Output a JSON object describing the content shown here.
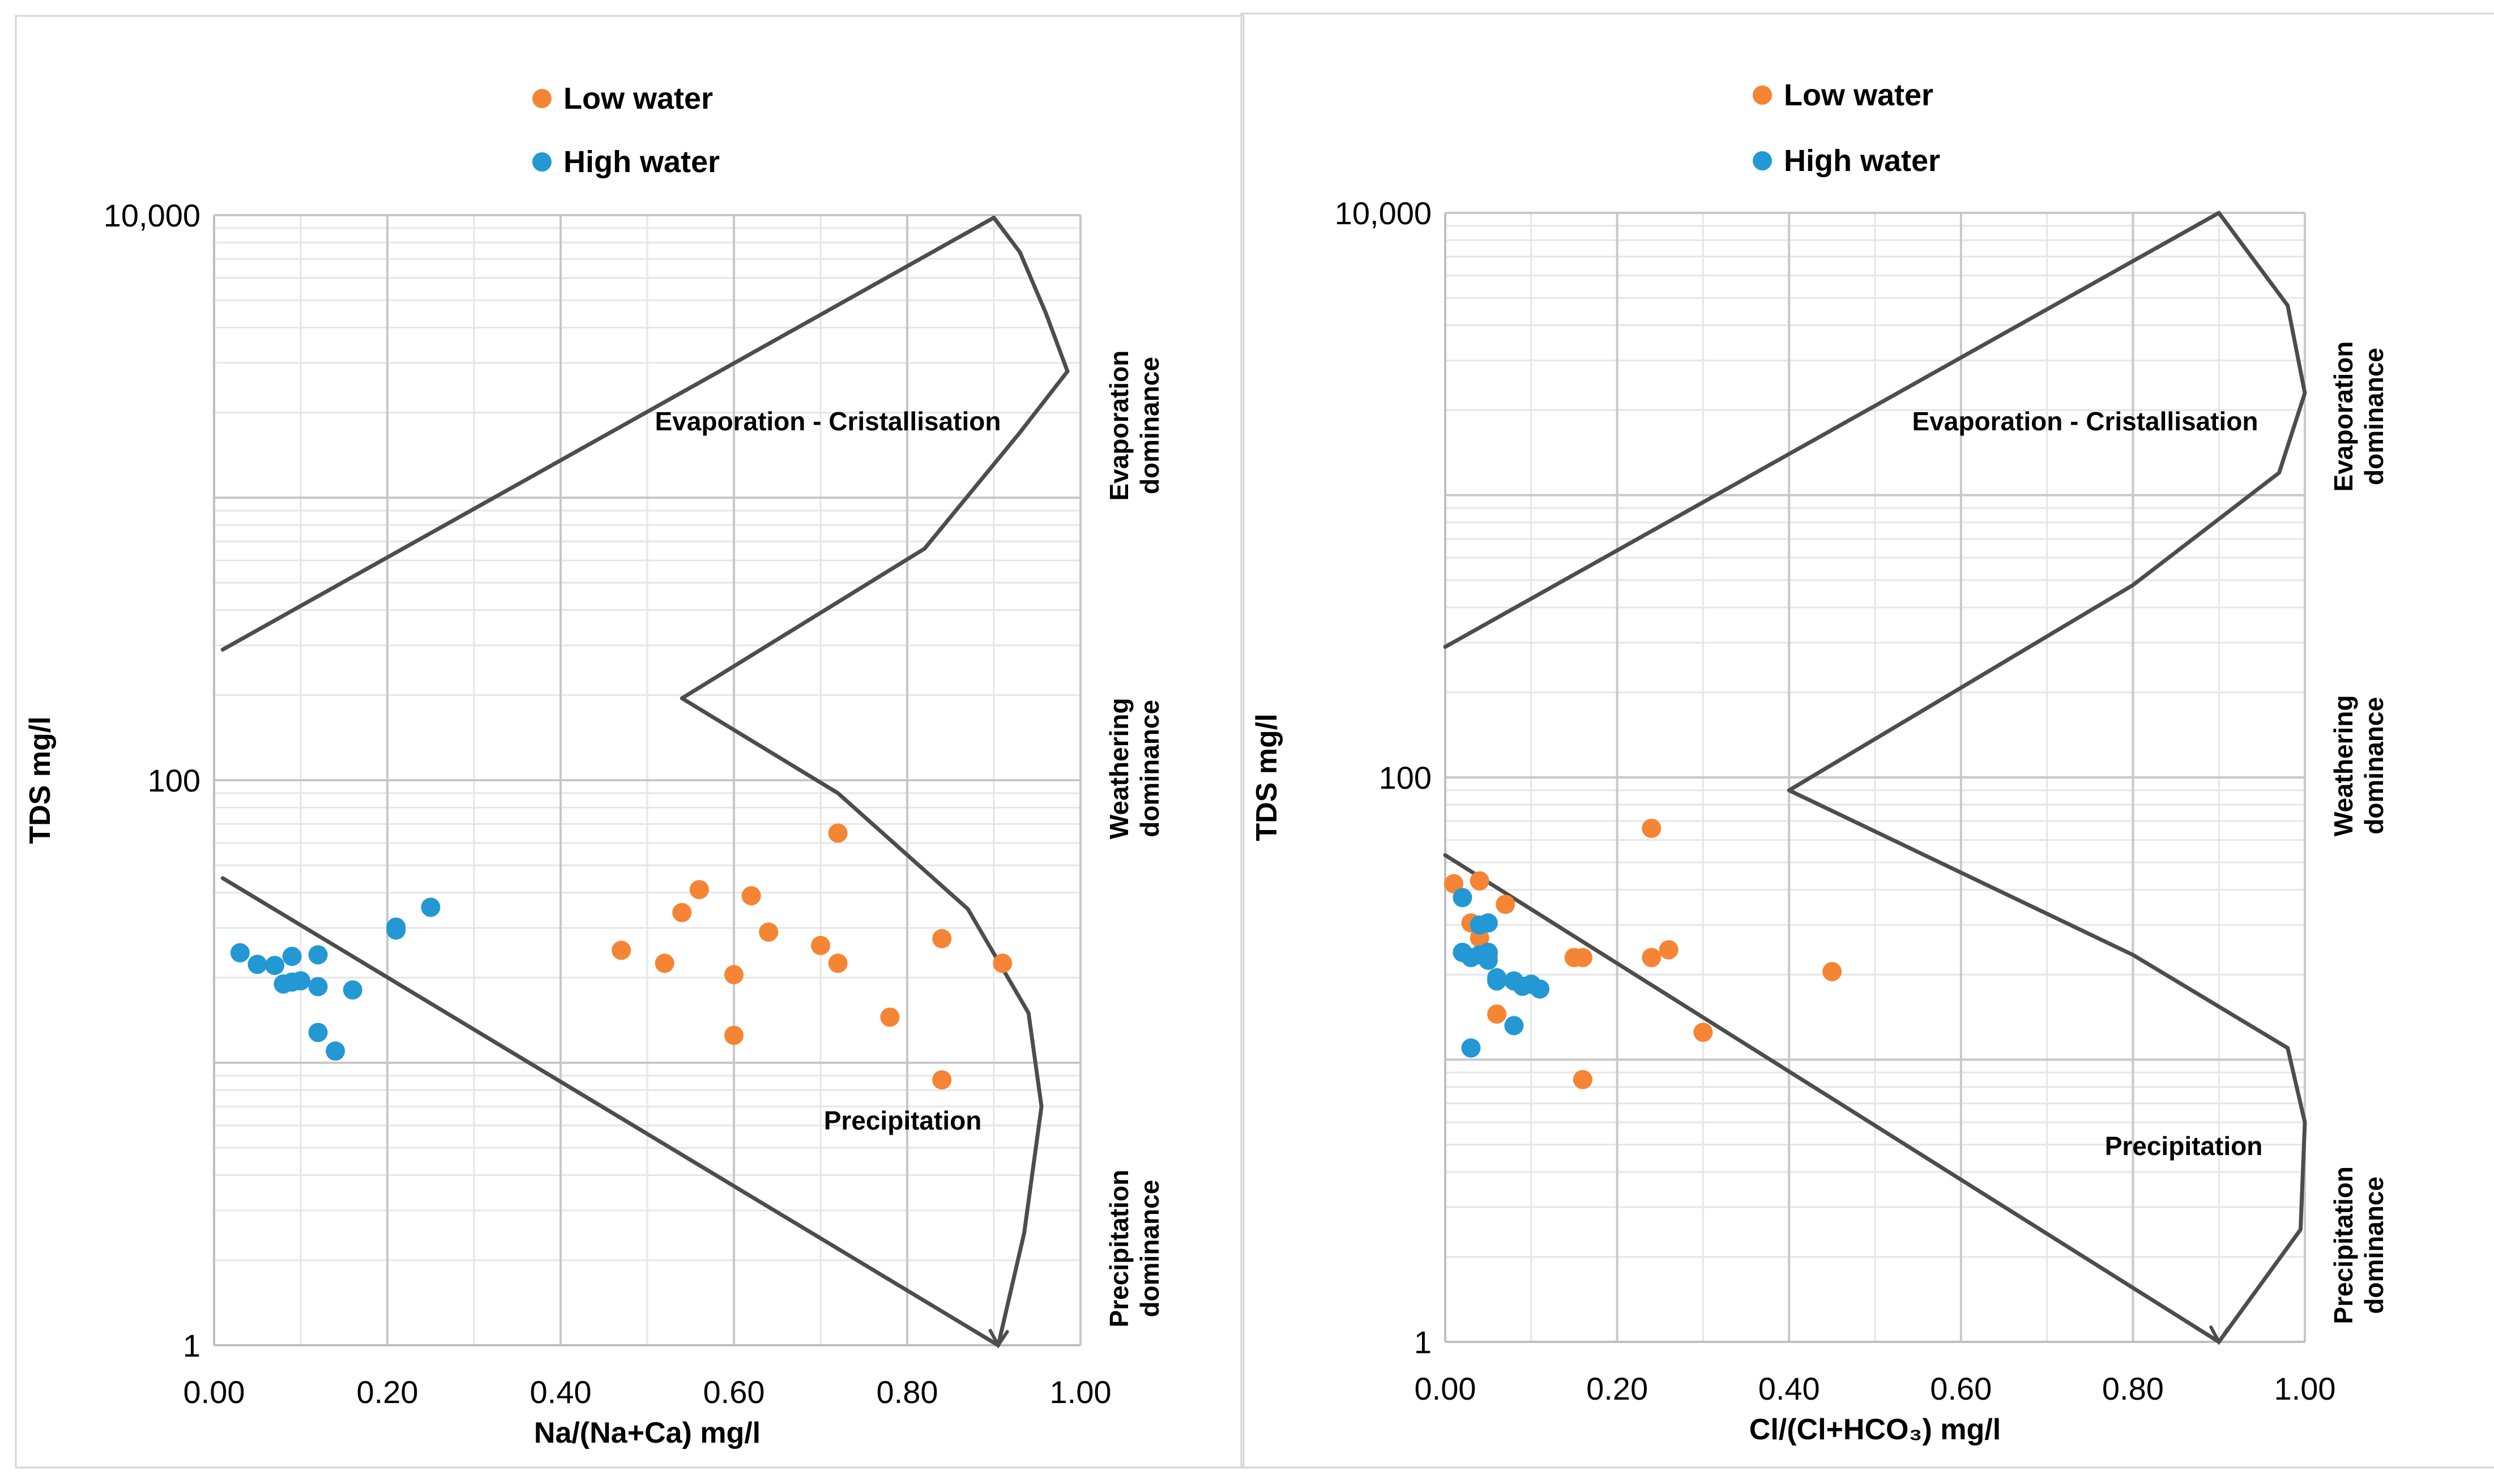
{
  "colors": {
    "low_water": "#F58534",
    "high_water": "#2398D4",
    "envelope": "#4D4D4D",
    "grid_major": "#C8C8C8",
    "grid_minor": "#E6E6E6",
    "panel_border": "#D4D4D4"
  },
  "chart_data": [
    {
      "type": "scatter",
      "title": "",
      "xlabel": "Na/(Na+Ca)  mg/l",
      "ylabel": "TDS mg/l",
      "xlim": [
        0,
        1
      ],
      "ylim": [
        1,
        10000
      ],
      "y_scale": "log",
      "grid": true,
      "legend_position": "top-center",
      "x_ticks": [
        0,
        0.2,
        0.4,
        0.6,
        0.8,
        1.0
      ],
      "x_tick_labels": [
        "0.00",
        "0.20",
        "0.40",
        "0.60",
        "0.80",
        "1.00"
      ],
      "y_ticks": [
        1,
        100,
        10000
      ],
      "y_tick_labels": [
        "1",
        "100",
        "10,000"
      ],
      "side_labels": [
        {
          "line1": "Evaporation",
          "line2": "dominance",
          "y": 1800
        },
        {
          "line1": "Weathering",
          "line2": "dominance",
          "y": 110
        },
        {
          "line1": "Precipitation",
          "line2": "dominance",
          "y": 2.2
        }
      ],
      "region_labels": [
        {
          "text": "Evaporation - Cristallisation",
          "x": 0.71,
          "y": 1900
        },
        {
          "text": "Precipitation",
          "x": 0.8,
          "y": 8.2
        }
      ],
      "envelope": [
        [
          [
            0.01,
            290
          ],
          [
            0.9,
            9800
          ]
        ],
        [
          [
            0.9,
            9800
          ],
          [
            0.93,
            7400
          ],
          [
            0.96,
            4500
          ],
          [
            0.985,
            2800
          ],
          [
            0.93,
            1700
          ],
          [
            0.82,
            660
          ],
          [
            0.54,
            195
          ],
          [
            0.72,
            90
          ],
          [
            0.87,
            35
          ],
          [
            0.94,
            15
          ],
          [
            0.955,
            7
          ],
          [
            0.935,
            2.5
          ],
          [
            0.905,
            1
          ]
        ],
        [
          [
            0.01,
            45
          ],
          [
            0.905,
            1
          ]
        ]
      ],
      "series": [
        {
          "name": "Low water",
          "points": [
            [
              0.47,
              25
            ],
            [
              0.52,
              22.5
            ],
            [
              0.54,
              34
            ],
            [
              0.56,
              41
            ],
            [
              0.6,
              12.5
            ],
            [
              0.6,
              20.5
            ],
            [
              0.62,
              39
            ],
            [
              0.64,
              29
            ],
            [
              0.7,
              26
            ],
            [
              0.72,
              22.5
            ],
            [
              0.72,
              65
            ],
            [
              0.78,
              14.5
            ],
            [
              0.84,
              8.7
            ],
            [
              0.84,
              27.5
            ],
            [
              0.91,
              22.5
            ]
          ]
        },
        {
          "name": "High water",
          "points": [
            [
              0.03,
              24.5
            ],
            [
              0.05,
              22.3
            ],
            [
              0.07,
              22.1
            ],
            [
              0.08,
              19.0
            ],
            [
              0.09,
              23.8
            ],
            [
              0.09,
              19.3
            ],
            [
              0.1,
              19.5
            ],
            [
              0.12,
              18.6
            ],
            [
              0.12,
              24.1
            ],
            [
              0.12,
              12.8
            ],
            [
              0.14,
              11.0
            ],
            [
              0.16,
              18.1
            ],
            [
              0.21,
              29.5
            ],
            [
              0.21,
              30.2
            ],
            [
              0.25,
              35.5
            ]
          ]
        }
      ]
    },
    {
      "type": "scatter",
      "title": "",
      "xlabel": "Cl/(Cl+HCO₃)  mg/l",
      "ylabel": "TDS mg/l",
      "xlim": [
        0,
        1
      ],
      "ylim": [
        1,
        10000
      ],
      "y_scale": "log",
      "grid": true,
      "legend_position": "top-center",
      "x_ticks": [
        0,
        0.2,
        0.4,
        0.6,
        0.8,
        1.0
      ],
      "x_tick_labels": [
        "0.00",
        "0.20",
        "0.40",
        "0.60",
        "0.80",
        "1.00"
      ],
      "y_ticks": [
        1,
        100,
        10000
      ],
      "y_tick_labels": [
        "1",
        "100",
        "10,000"
      ],
      "side_labels": [
        {
          "line1": "Evaporation",
          "line2": "dominance",
          "y": 1900
        },
        {
          "line1": "Weathering",
          "line2": "dominance",
          "y": 110
        },
        {
          "line1": "Precipitation",
          "line2": "dominance",
          "y": 2.2
        }
      ],
      "region_labels": [
        {
          "text": "Evaporation - Cristallisation",
          "x": 0.75,
          "y": 1900
        },
        {
          "text": "Precipitation",
          "x": 0.86,
          "y": 6.7
        }
      ],
      "envelope": [
        [
          [
            0.0,
            290
          ],
          [
            0.9,
            10000
          ]
        ],
        [
          [
            0.9,
            10000
          ],
          [
            0.98,
            4700
          ],
          [
            1.0,
            2300
          ],
          [
            0.97,
            1200
          ],
          [
            0.8,
            480
          ],
          [
            0.4,
            90
          ],
          [
            0.8,
            23.5
          ],
          [
            0.98,
            11
          ],
          [
            1.0,
            6
          ],
          [
            0.995,
            2.5
          ],
          [
            0.9,
            1
          ]
        ],
        [
          [
            0.0,
            53
          ],
          [
            0.9,
            1
          ]
        ]
      ],
      "series": [
        {
          "name": "Low water",
          "points": [
            [
              0.01,
              42
            ],
            [
              0.03,
              30.5
            ],
            [
              0.04,
              43
            ],
            [
              0.04,
              27
            ],
            [
              0.05,
              23.5
            ],
            [
              0.06,
              14.5
            ],
            [
              0.07,
              35.5
            ],
            [
              0.15,
              23
            ],
            [
              0.16,
              8.5
            ],
            [
              0.16,
              23
            ],
            [
              0.24,
              66
            ],
            [
              0.24,
              23
            ],
            [
              0.26,
              24.5
            ],
            [
              0.3,
              12.5
            ],
            [
              0.45,
              20.5
            ]
          ]
        },
        {
          "name": "High water",
          "points": [
            [
              0.02,
              37.5
            ],
            [
              0.02,
              24
            ],
            [
              0.03,
              11
            ],
            [
              0.03,
              23
            ],
            [
              0.04,
              23.5
            ],
            [
              0.04,
              30
            ],
            [
              0.05,
              24
            ],
            [
              0.05,
              30.5
            ],
            [
              0.05,
              22.5
            ],
            [
              0.06,
              19
            ],
            [
              0.06,
              19.5
            ],
            [
              0.08,
              19
            ],
            [
              0.08,
              13.2
            ],
            [
              0.09,
              18.2
            ],
            [
              0.1,
              18.5
            ],
            [
              0.11,
              17.8
            ]
          ]
        }
      ]
    }
  ]
}
